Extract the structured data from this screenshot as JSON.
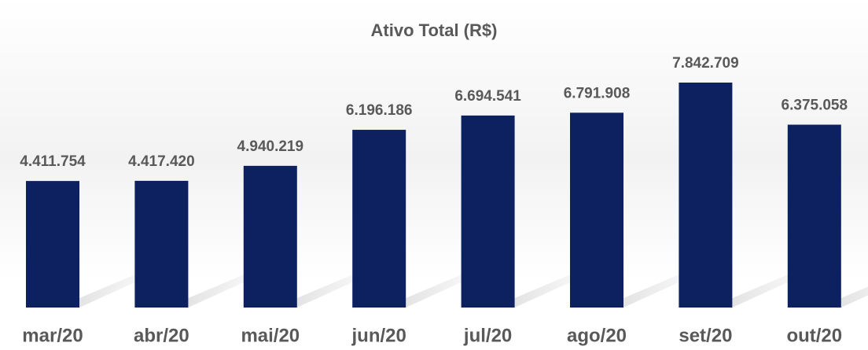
{
  "chart_data": {
    "type": "bar",
    "title": "Ativo Total (R$)",
    "categories": [
      "mar/20",
      "abr/20",
      "mai/20",
      "jun/20",
      "jul/20",
      "ago/20",
      "set/20",
      "out/20"
    ],
    "values": [
      4411754,
      4417420,
      4940219,
      6196186,
      6694541,
      6791908,
      7842709,
      6375058
    ],
    "value_labels": [
      "4.411.754",
      "4.417.420",
      "4.940.219",
      "6.196.186",
      "6.694.541",
      "6.791.908",
      "7.842.709",
      "6.375.058"
    ],
    "color": "#0d2060"
  }
}
